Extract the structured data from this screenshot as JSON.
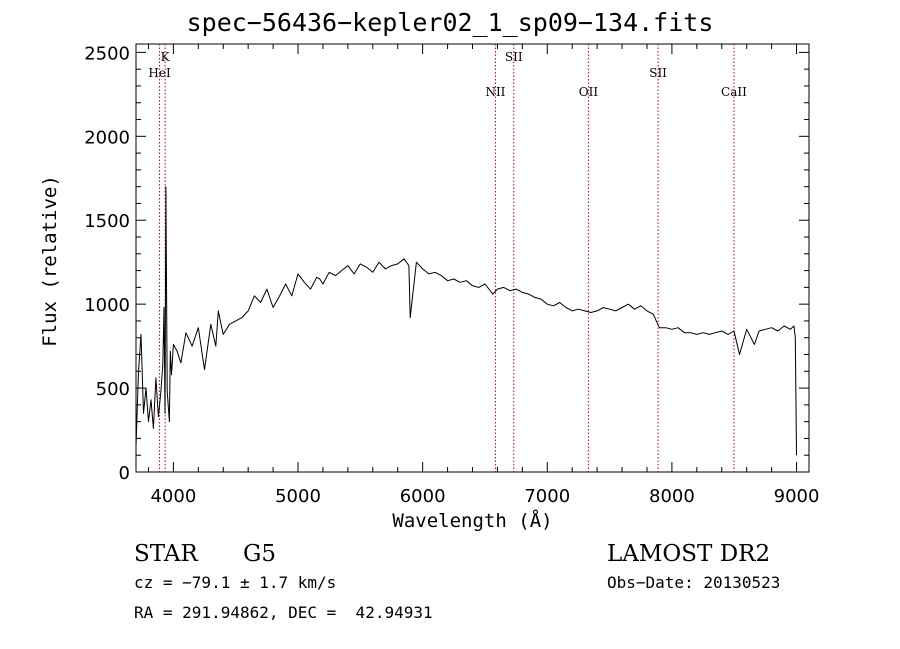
{
  "chart_data": {
    "type": "line",
    "title": "spec−56436−kepler02_1_sp09−134.fits",
    "xlabel": "Wavelength (Å)",
    "ylabel": "Flux (relative)",
    "xlim": [
      3700,
      9100
    ],
    "ylim": [
      0,
      2550
    ],
    "xticks": [
      4000,
      5000,
      6000,
      7000,
      8000,
      9000
    ],
    "yticks": [
      0,
      500,
      1000,
      1500,
      2000,
      2500
    ],
    "grid": false,
    "line_color": "#000000",
    "marker_color": "#cc0000",
    "series": [
      {
        "x": [
          3700,
          3720,
          3740,
          3760,
          3780,
          3800,
          3820,
          3840,
          3860,
          3880,
          3900,
          3915,
          3925,
          3933,
          3940,
          3950,
          3968,
          3975,
          3985,
          4000,
          4030,
          4060,
          4100,
          4150,
          4200,
          4250,
          4300,
          4340,
          4360,
          4400,
          4450,
          4500,
          4550,
          4600,
          4650,
          4700,
          4750,
          4800,
          4860,
          4900,
          4950,
          5000,
          5050,
          5100,
          5150,
          5175,
          5200,
          5250,
          5300,
          5350,
          5400,
          5450,
          5500,
          5550,
          5600,
          5650,
          5700,
          5750,
          5800,
          5850,
          5890,
          5900,
          5950,
          6000,
          6050,
          6100,
          6150,
          6200,
          6250,
          6300,
          6350,
          6400,
          6450,
          6500,
          6563,
          6600,
          6650,
          6700,
          6750,
          6800,
          6850,
          6900,
          6950,
          7000,
          7050,
          7100,
          7150,
          7200,
          7250,
          7300,
          7350,
          7400,
          7450,
          7500,
          7550,
          7600,
          7650,
          7700,
          7750,
          7800,
          7850,
          7900,
          7950,
          8000,
          8050,
          8100,
          8150,
          8200,
          8250,
          8300,
          8350,
          8400,
          8450,
          8498,
          8542,
          8600,
          8662,
          8700,
          8750,
          8800,
          8850,
          8900,
          8950,
          8980,
          8990,
          9000
        ],
        "values": [
          150,
          600,
          820,
          350,
          500,
          300,
          430,
          260,
          560,
          330,
          480,
          640,
          980,
          350,
          1700,
          480,
          300,
          720,
          580,
          760,
          720,
          650,
          830,
          750,
          860,
          610,
          880,
          750,
          960,
          820,
          880,
          900,
          920,
          960,
          1050,
          1010,
          1090,
          980,
          1060,
          1120,
          1050,
          1180,
          1130,
          1090,
          1160,
          1150,
          1120,
          1190,
          1170,
          1200,
          1230,
          1180,
          1240,
          1220,
          1190,
          1250,
          1210,
          1230,
          1240,
          1270,
          1230,
          920,
          1250,
          1210,
          1180,
          1190,
          1170,
          1140,
          1150,
          1130,
          1140,
          1110,
          1100,
          1120,
          1060,
          1090,
          1100,
          1080,
          1090,
          1070,
          1060,
          1040,
          1030,
          1000,
          990,
          1010,
          980,
          960,
          970,
          960,
          950,
          960,
          980,
          970,
          960,
          980,
          1000,
          970,
          990,
          960,
          940,
          860,
          860,
          850,
          860,
          830,
          830,
          820,
          830,
          820,
          830,
          840,
          820,
          840,
          700,
          850,
          760,
          840,
          850,
          860,
          840,
          870,
          850,
          870,
          800,
          100
        ]
      }
    ],
    "line_markers": [
      {
        "label": "K",
        "x": 3934,
        "row": 1
      },
      {
        "label": "HeI",
        "x": 3889,
        "row": 2
      },
      {
        "label": "NII",
        "x": 6584,
        "row": 3
      },
      {
        "label": "SII",
        "x": 6731,
        "row": 1
      },
      {
        "label": "OII",
        "x": 7330,
        "row": 3
      },
      {
        "label": "SII",
        "x": 7889,
        "row": 2
      },
      {
        "label": "CaII",
        "x": 8498,
        "row": 3
      }
    ]
  },
  "footer": {
    "object_class": "STAR",
    "subclass": "G5",
    "redshift": "cz = −79.1 ± 1.7 km/s",
    "coords": "RA = 291.94862, DEC =  42.94931",
    "survey": "LAMOST DR2",
    "obs_date": "Obs−Date: 20130523"
  }
}
